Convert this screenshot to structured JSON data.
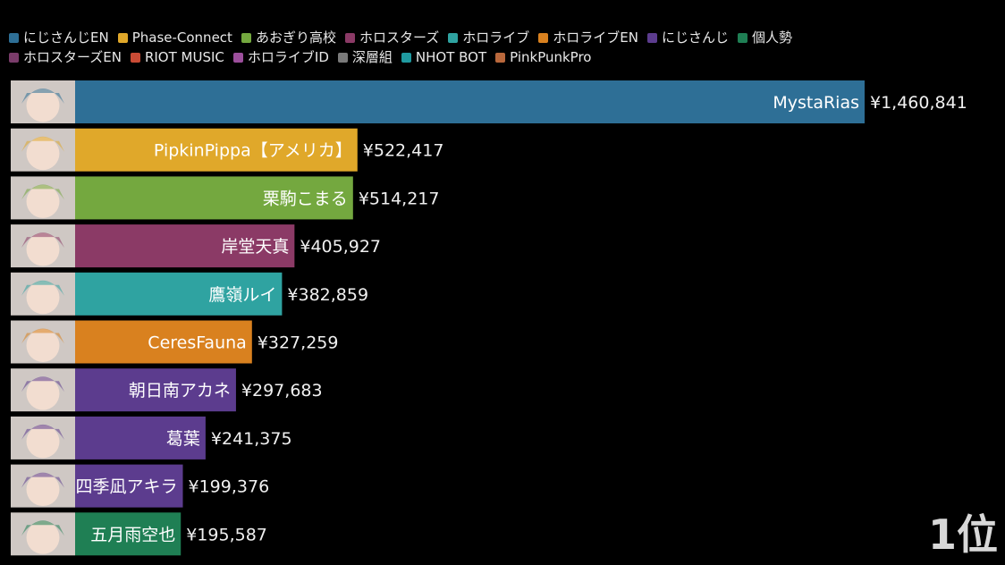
{
  "chart_data": {
    "type": "bar",
    "orientation": "horizontal",
    "legend": {
      "placement": "top",
      "entries": [
        {
          "name": "にじさんじEN",
          "color": "#2e6f96"
        },
        {
          "name": "Phase-Connect",
          "color": "#e0a82a"
        },
        {
          "name": "あおぎり高校",
          "color": "#74a83f"
        },
        {
          "name": "ホロスターズ",
          "color": "#8b3a66"
        },
        {
          "name": "ホロライブ",
          "color": "#2fa3a1"
        },
        {
          "name": "ホロライブEN",
          "color": "#d9811f"
        },
        {
          "name": "にじさんじ",
          "color": "#5c3c8e"
        },
        {
          "name": "個人勢",
          "color": "#1f7f54"
        },
        {
          "name": "ホロスターズEN",
          "color": "#7a3c6a"
        },
        {
          "name": "RIOT MUSIC",
          "color": "#c94b35"
        },
        {
          "name": "ホロライブID",
          "color": "#9c4f9c"
        },
        {
          "name": "深層組",
          "color": "#7a7a7a"
        },
        {
          "name": "NHOT BOT",
          "color": "#1f9aa0"
        },
        {
          "name": "PinkPunkPro",
          "color": "#b9683c"
        }
      ]
    },
    "categories": [
      "MystaRias",
      "PipkinPippa【アメリカ】",
      "栗駒こまる",
      "岸堂天真",
      "鷹嶺ルイ",
      "CeresFauna",
      "朝日南アカネ",
      "葛葉",
      "四季凪アキラ",
      "五月雨空也"
    ],
    "values": [
      1460841,
      522417,
      514217,
      405927,
      382859,
      327259,
      297683,
      241375,
      199376,
      195587
    ],
    "value_labels": [
      "¥1,460,841",
      "¥522,417",
      "¥514,217",
      "¥405,927",
      "¥382,859",
      "¥327,259",
      "¥297,683",
      "¥241,375",
      "¥199,376",
      "¥195,587"
    ],
    "groups": [
      "にじさんじEN",
      "Phase-Connect",
      "あおぎり高校",
      "ホロスターズ",
      "ホロライブ",
      "ホロライブEN",
      "にじさんじ",
      "にじさんじ",
      "にじさんじ",
      "個人勢"
    ],
    "colors": [
      "#2e6f96",
      "#e0a82a",
      "#74a83f",
      "#8b3a66",
      "#2fa3a1",
      "#d9811f",
      "#5c3c8e",
      "#5c3c8e",
      "#5c3c8e",
      "#1f7f54"
    ],
    "xlim": [
      0,
      1460841
    ],
    "grid": false,
    "corner_label": "1位"
  }
}
